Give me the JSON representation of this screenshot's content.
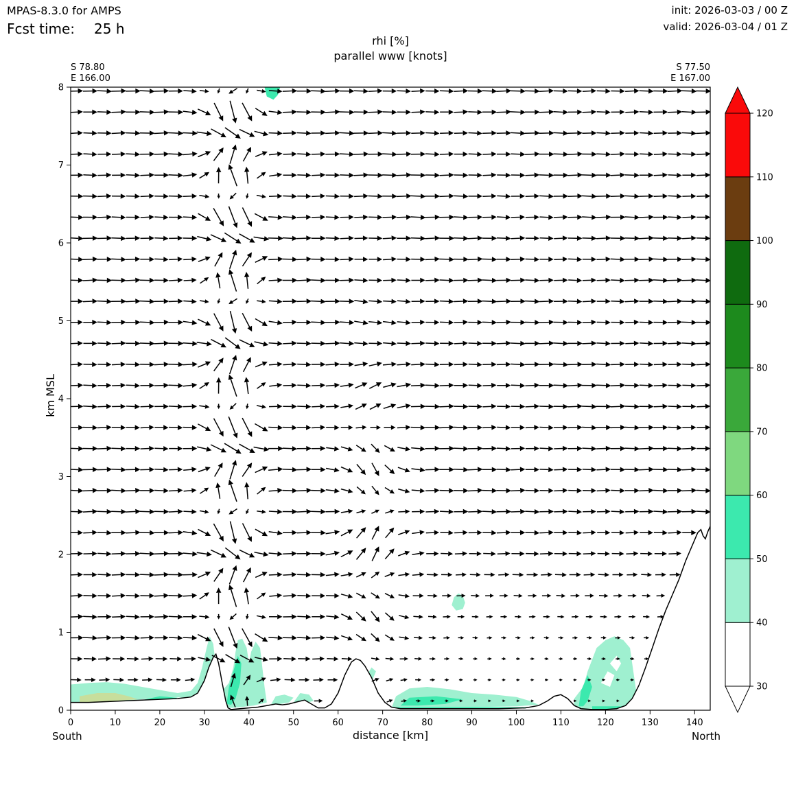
{
  "header": {
    "model": "MPAS-8.3.0 for AMPS",
    "fcst_label": "Fcst time:",
    "fcst_value": "25 h",
    "init": "init: 2026-03-03 / 00 Z",
    "valid": "valid: 2026-03-04 / 01 Z"
  },
  "titles": {
    "line1": "rhi [%]",
    "line2": "parallel www [knots]"
  },
  "corners": {
    "left_lat": "S 78.80",
    "left_lon": "E 166.00",
    "right_lat": "S 77.50",
    "right_lon": "E 167.00"
  },
  "labels": {
    "south": "South",
    "north": "North"
  },
  "chart_data": {
    "type": "quiver_cross_section",
    "title": "rhi [%]",
    "subtitle": "parallel www [knots]",
    "xlabel": "distance [km]",
    "ylabel": "km MSL",
    "x_range_km": [
      0,
      143.5
    ],
    "y_range_km": [
      0,
      8
    ],
    "x_ticks": [
      0,
      10,
      20,
      30,
      40,
      50,
      60,
      70,
      80,
      90,
      100,
      110,
      120,
      130,
      140
    ],
    "y_ticks": [
      0,
      1,
      2,
      3,
      4,
      5,
      6,
      7,
      8
    ],
    "colorbar": {
      "units": "%",
      "extend": "both",
      "label_values": [
        30,
        40,
        50,
        60,
        70,
        80,
        90,
        100,
        110,
        120
      ],
      "under_color": "#ffffff",
      "over_color": "#fa0a0a",
      "segments": [
        {
          "from": 30,
          "to": 40,
          "color": "#ffffff"
        },
        {
          "from": 40,
          "to": 50,
          "color": "#9ff0d0"
        },
        {
          "from": 50,
          "to": 60,
          "color": "#3ce9ae"
        },
        {
          "from": 60,
          "to": 70,
          "color": "#7fd87f"
        },
        {
          "from": 70,
          "to": 80,
          "color": "#3aa83a"
        },
        {
          "from": 80,
          "to": 90,
          "color": "#1d8a1d"
        },
        {
          "from": 90,
          "to": 100,
          "color": "#0f6b0f"
        },
        {
          "from": 100,
          "to": 110,
          "color": "#6b3d10"
        },
        {
          "from": 110,
          "to": 120,
          "color": "#fa0a0a"
        }
      ]
    },
    "terrain_profile_km": [
      [
        0,
        0.1
      ],
      [
        4,
        0.1
      ],
      [
        8,
        0.11
      ],
      [
        12,
        0.12
      ],
      [
        16,
        0.13
      ],
      [
        20,
        0.14
      ],
      [
        24,
        0.15
      ],
      [
        27,
        0.17
      ],
      [
        28.5,
        0.22
      ],
      [
        30,
        0.38
      ],
      [
        31,
        0.55
      ],
      [
        32,
        0.68
      ],
      [
        32.6,
        0.72
      ],
      [
        33.2,
        0.6
      ],
      [
        34,
        0.35
      ],
      [
        34.8,
        0.12
      ],
      [
        35.3,
        0.03
      ],
      [
        36,
        0.01
      ],
      [
        38,
        0.02
      ],
      [
        40,
        0.03
      ],
      [
        42,
        0.04
      ],
      [
        44,
        0.06
      ],
      [
        46,
        0.08
      ],
      [
        47.5,
        0.07
      ],
      [
        49,
        0.08
      ],
      [
        51,
        0.11
      ],
      [
        52.5,
        0.13
      ],
      [
        54,
        0.08
      ],
      [
        55.5,
        0.03
      ],
      [
        57,
        0.03
      ],
      [
        58.5,
        0.08
      ],
      [
        60,
        0.22
      ],
      [
        61.5,
        0.45
      ],
      [
        63,
        0.62
      ],
      [
        64,
        0.66
      ],
      [
        65,
        0.64
      ],
      [
        66,
        0.57
      ],
      [
        67.5,
        0.42
      ],
      [
        69,
        0.22
      ],
      [
        70.5,
        0.1
      ],
      [
        72,
        0.04
      ],
      [
        74,
        0.02
      ],
      [
        78,
        0.02
      ],
      [
        84,
        0.02
      ],
      [
        90,
        0.02
      ],
      [
        96,
        0.02
      ],
      [
        102,
        0.03
      ],
      [
        105,
        0.06
      ],
      [
        107,
        0.12
      ],
      [
        108.5,
        0.18
      ],
      [
        110,
        0.2
      ],
      [
        111.5,
        0.15
      ],
      [
        113,
        0.06
      ],
      [
        114.5,
        0.02
      ],
      [
        117,
        0.01
      ],
      [
        120,
        0.01
      ],
      [
        122.5,
        0.02
      ],
      [
        124.5,
        0.06
      ],
      [
        126,
        0.15
      ],
      [
        127.5,
        0.32
      ],
      [
        129,
        0.55
      ],
      [
        130.5,
        0.8
      ],
      [
        132,
        1.05
      ],
      [
        133.5,
        1.28
      ],
      [
        135,
        1.48
      ],
      [
        136.5,
        1.68
      ],
      [
        138,
        1.92
      ],
      [
        139.5,
        2.12
      ],
      [
        140.7,
        2.28
      ],
      [
        141.4,
        2.32
      ],
      [
        141.9,
        2.24
      ],
      [
        142.4,
        2.2
      ],
      [
        143,
        2.3
      ],
      [
        143.5,
        2.36
      ]
    ],
    "rhi_patches": [
      {
        "name": "sw-lowlevel-40",
        "color": "#9ff0d0",
        "pts": [
          [
            0,
            0.1
          ],
          [
            0,
            0.33
          ],
          [
            4,
            0.35
          ],
          [
            8,
            0.36
          ],
          [
            12,
            0.34
          ],
          [
            16,
            0.3
          ],
          [
            20,
            0.26
          ],
          [
            24,
            0.22
          ],
          [
            27,
            0.25
          ],
          [
            28.5,
            0.35
          ],
          [
            29.5,
            0.55
          ],
          [
            30.5,
            0.8
          ],
          [
            31.2,
            0.95
          ],
          [
            32,
            0.85
          ],
          [
            32.6,
            0.55
          ],
          [
            33,
            0.25
          ],
          [
            33.2,
            0.1
          ],
          [
            30,
            0.15
          ],
          [
            26,
            0.16
          ],
          [
            22,
            0.17
          ],
          [
            18,
            0.15
          ],
          [
            14,
            0.13
          ],
          [
            10,
            0.12
          ],
          [
            5,
            0.11
          ]
        ]
      },
      {
        "name": "sw-lowlevel-60",
        "color": "#c8de9c",
        "pts": [
          [
            2,
            0.1
          ],
          [
            2,
            0.18
          ],
          [
            6,
            0.22
          ],
          [
            10,
            0.22
          ],
          [
            13,
            0.18
          ],
          [
            15,
            0.14
          ],
          [
            10,
            0.12
          ],
          [
            6,
            0.11
          ]
        ]
      },
      {
        "name": "sw-lowlevel-50",
        "color": "#3ce9ae",
        "pts": [
          [
            16,
            0.13
          ],
          [
            20,
            0.18
          ],
          [
            24,
            0.16
          ],
          [
            22,
            0.12
          ],
          [
            18,
            0.12
          ]
        ]
      },
      {
        "name": "peak-lee-40",
        "color": "#9ff0d0",
        "pts": [
          [
            34,
            0.05
          ],
          [
            34,
            0.25
          ],
          [
            35.5,
            0.35
          ],
          [
            36.5,
            0.55
          ],
          [
            37,
            0.75
          ],
          [
            37.5,
            0.9
          ],
          [
            38.5,
            0.92
          ],
          [
            39.5,
            0.8
          ],
          [
            40,
            0.6
          ],
          [
            40.5,
            0.75
          ],
          [
            41.5,
            0.88
          ],
          [
            42.5,
            0.8
          ],
          [
            43,
            0.55
          ],
          [
            43.5,
            0.3
          ],
          [
            44,
            0.1
          ],
          [
            41,
            0.06
          ],
          [
            38,
            0.04
          ],
          [
            36,
            0.03
          ]
        ]
      },
      {
        "name": "peak-lee-50",
        "color": "#3ce9ae",
        "pts": [
          [
            35,
            0.08
          ],
          [
            35.5,
            0.3
          ],
          [
            36.5,
            0.5
          ],
          [
            37.5,
            0.7
          ],
          [
            38.3,
            0.6
          ],
          [
            38,
            0.35
          ],
          [
            37,
            0.15
          ],
          [
            36,
            0.07
          ]
        ]
      },
      {
        "name": "valley-blob-1",
        "color": "#9ff0d0",
        "pts": [
          [
            45,
            0.08
          ],
          [
            46,
            0.18
          ],
          [
            48,
            0.2
          ],
          [
            50,
            0.16
          ],
          [
            49,
            0.1
          ],
          [
            47,
            0.08
          ]
        ]
      },
      {
        "name": "valley-blob-2",
        "color": "#9ff0d0",
        "pts": [
          [
            50,
            0.1
          ],
          [
            51.5,
            0.22
          ],
          [
            53.5,
            0.2
          ],
          [
            54.5,
            0.12
          ],
          [
            52,
            0.08
          ]
        ]
      },
      {
        "name": "plain-surface-40",
        "color": "#9ff0d0",
        "pts": [
          [
            72,
            0.03
          ],
          [
            73,
            0.18
          ],
          [
            76,
            0.28
          ],
          [
            80,
            0.3
          ],
          [
            85,
            0.27
          ],
          [
            90,
            0.22
          ],
          [
            95,
            0.2
          ],
          [
            100,
            0.17
          ],
          [
            103,
            0.12
          ],
          [
            105,
            0.07
          ],
          [
            100,
            0.05
          ],
          [
            90,
            0.04
          ],
          [
            80,
            0.04
          ],
          [
            75,
            0.03
          ]
        ]
      },
      {
        "name": "plain-surface-50",
        "color": "#3ce9ae",
        "pts": [
          [
            74,
            0.06
          ],
          [
            76,
            0.16
          ],
          [
            82,
            0.18
          ],
          [
            88,
            0.14
          ],
          [
            84,
            0.08
          ],
          [
            78,
            0.06
          ]
        ]
      },
      {
        "name": "plain-bottom-strip-50",
        "color": "#3ce9ae",
        "pts": [
          [
            73,
            0.005
          ],
          [
            103,
            0.005
          ],
          [
            103,
            0.04
          ],
          [
            73,
            0.04
          ]
        ]
      },
      {
        "name": "midlevel-blob-40",
        "color": "#9ff0d0",
        "pts": [
          [
            85.5,
            1.35
          ],
          [
            86,
            1.45
          ],
          [
            87,
            1.5
          ],
          [
            88,
            1.47
          ],
          [
            88.5,
            1.38
          ],
          [
            88,
            1.3
          ],
          [
            86.5,
            1.28
          ]
        ]
      },
      {
        "name": "north-slope-40",
        "color": "#9ff0d0",
        "pts": [
          [
            113,
            0.02
          ],
          [
            113,
            0.15
          ],
          [
            115,
            0.3
          ],
          [
            116,
            0.5
          ],
          [
            117,
            0.65
          ],
          [
            118,
            0.8
          ],
          [
            120,
            0.9
          ],
          [
            122,
            0.95
          ],
          [
            124,
            0.9
          ],
          [
            125.5,
            0.8
          ],
          [
            126,
            0.6
          ],
          [
            126.5,
            0.4
          ],
          [
            127,
            0.2
          ],
          [
            127,
            0.05
          ],
          [
            124,
            0.03
          ],
          [
            120,
            0.02
          ],
          [
            116,
            0.02
          ]
        ]
      },
      {
        "name": "north-slope-50",
        "color": "#3ce9ae",
        "pts": [
          [
            114,
            0.05
          ],
          [
            114.5,
            0.25
          ],
          [
            116,
            0.45
          ],
          [
            117,
            0.3
          ],
          [
            116,
            0.12
          ],
          [
            115,
            0.05
          ]
        ]
      },
      {
        "name": "north-slope-hole-1",
        "color": "#ffffff",
        "pts": [
          [
            119,
            0.35
          ],
          [
            120.5,
            0.5
          ],
          [
            122,
            0.45
          ],
          [
            121,
            0.3
          ]
        ]
      },
      {
        "name": "north-slope-hole-2",
        "color": "#ffffff",
        "pts": [
          [
            121,
            0.6
          ],
          [
            122.5,
            0.7
          ],
          [
            123.5,
            0.6
          ],
          [
            122.5,
            0.5
          ]
        ]
      },
      {
        "name": "north-bottom-strip-50",
        "color": "#3ce9ae",
        "pts": [
          [
            117,
            0.01
          ],
          [
            125,
            0.01
          ],
          [
            125,
            0.05
          ],
          [
            117,
            0.05
          ]
        ]
      },
      {
        "name": "top-edge-patch-50",
        "color": "#3ce9ae",
        "pts": [
          [
            43.5,
            8.0
          ],
          [
            44,
            7.88
          ],
          [
            45.5,
            7.84
          ],
          [
            46.5,
            7.9
          ],
          [
            47,
            8.0
          ]
        ]
      },
      {
        "name": "dome-lee-speck-40",
        "color": "#9ff0d0",
        "pts": [
          [
            66.5,
            0.45
          ],
          [
            67.5,
            0.55
          ],
          [
            68.5,
            0.5
          ],
          [
            67.8,
            0.4
          ]
        ]
      }
    ],
    "vector_field": {
      "arrow_color": "#000000",
      "grid": {
        "x_start": 1.2,
        "x_step": 3.2,
        "cols": 45,
        "z_start": 0.12,
        "z_step": 0.27,
        "rows": 30
      },
      "base_flow_u": 1.0,
      "wave_zones": [
        {
          "x_center": 36.5,
          "x_sigma": 5.5,
          "z_wavelength": 1.35,
          "u_amp": 1.7,
          "v_amp": 1.9
        },
        {
          "x_center": 68,
          "x_sigma": 6.5,
          "z_center": 2.2,
          "z_sigma": 2.0,
          "v_amp": 1.1,
          "z_wavelength": 2.0
        }
      ],
      "weak_zone": {
        "x_min": 76,
        "z_max": 1.5,
        "reduction": 0.83
      }
    }
  }
}
